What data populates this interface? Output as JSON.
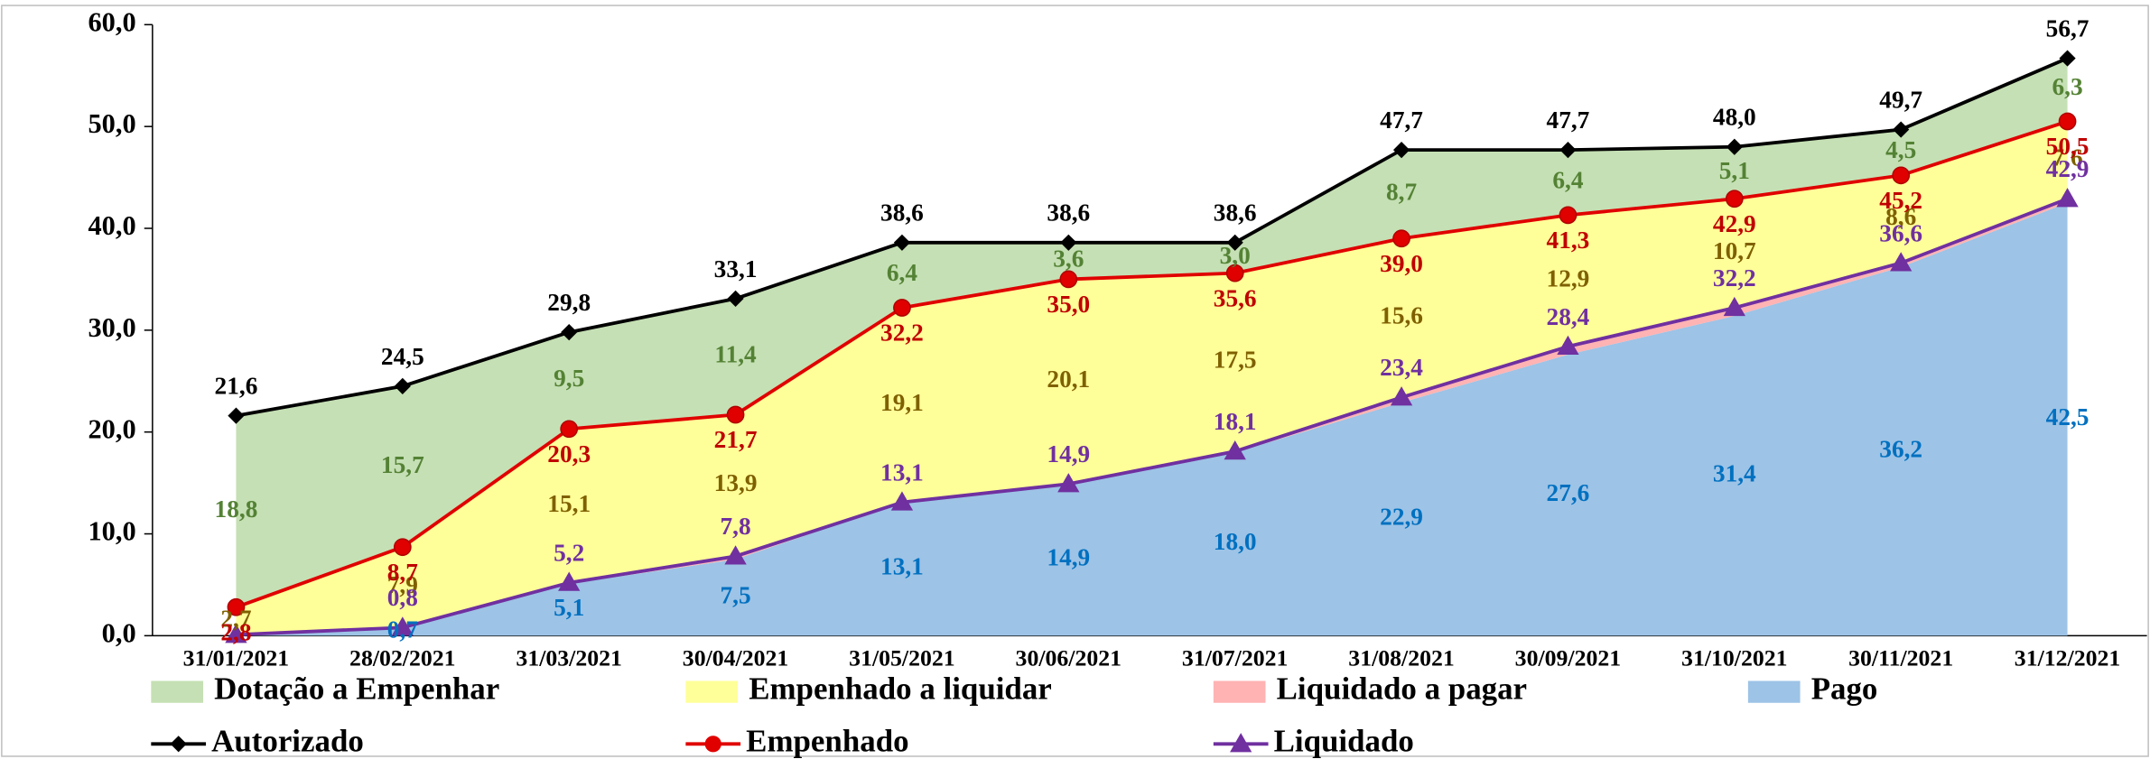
{
  "chart_data": {
    "type": "stacked-area-line",
    "categories": [
      "31/01/2021",
      "28/02/2021",
      "31/03/2021",
      "30/04/2021",
      "31/05/2021",
      "30/06/2021",
      "31/07/2021",
      "31/08/2021",
      "30/09/2021",
      "31/10/2021",
      "30/11/2021",
      "31/12/2021"
    ],
    "ylim": [
      0,
      60
    ],
    "yticks": [
      {
        "value": 0,
        "label": "0,0"
      },
      {
        "value": 10,
        "label": "10,0"
      },
      {
        "value": 20,
        "label": "20,0"
      },
      {
        "value": 30,
        "label": "30,0"
      },
      {
        "value": 40,
        "label": "40,0"
      },
      {
        "value": 50,
        "label": "50,0"
      },
      {
        "value": 60,
        "label": "60,0"
      }
    ],
    "series": [
      {
        "name": "Dotação a Empenhar",
        "type": "area",
        "color": "#c5e0b4",
        "label_color": "#548235",
        "values": [
          18.8,
          15.7,
          9.5,
          11.4,
          6.4,
          3.6,
          3.0,
          8.7,
          6.4,
          5.1,
          4.5,
          6.3
        ],
        "value_labels": [
          "18,8",
          "15,7",
          "9,5",
          "11,4",
          "6,4",
          "3,6",
          "3,0",
          "8,7",
          "6,4",
          "5,1",
          "4,5",
          "6,3"
        ]
      },
      {
        "name": "Empenhado a liquidar",
        "type": "area",
        "color": "#ffff99",
        "label_color": "#7f6000",
        "values": [
          2.7,
          7.9,
          15.1,
          13.9,
          19.1,
          20.1,
          17.5,
          15.6,
          12.9,
          10.7,
          8.6,
          7.6
        ],
        "value_labels": [
          "2,7",
          "7,9",
          "15,1",
          "13,9",
          "19,1",
          "20,1",
          "17,5",
          "15,6",
          "12,9",
          "10,7",
          "8,6",
          "7,6"
        ]
      },
      {
        "name": "Liquidado a pagar",
        "type": "area",
        "color": "#ffb3b3",
        "label_color": "#c00000",
        "values": [
          0,
          0.1,
          0.1,
          0.3,
          0,
          0,
          0.1,
          0.5,
          0.8,
          0.8,
          0.4,
          0.4
        ]
      },
      {
        "name": "Pago",
        "type": "area",
        "color": "#9dc3e6",
        "label_color": "#0070c0",
        "values": [
          0.1,
          0.7,
          5.1,
          7.5,
          13.1,
          14.9,
          18.0,
          22.9,
          27.6,
          31.4,
          36.2,
          42.5
        ],
        "value_labels": [
          null,
          "0,7",
          "5,1",
          "7,5",
          "13,1",
          "14,9",
          "18,0",
          "22,9",
          "27,6",
          "31,4",
          "36,2",
          "42,5"
        ]
      },
      {
        "name": "Autorizado",
        "type": "line",
        "color": "#000000",
        "marker": "diamond",
        "label_position": "above",
        "label_color": "#000000",
        "values": [
          21.6,
          24.5,
          29.8,
          33.1,
          38.6,
          38.6,
          38.6,
          47.7,
          47.7,
          48.0,
          49.7,
          56.7
        ],
        "value_labels": [
          "21,6",
          "24,5",
          "29,8",
          "33,1",
          "38,6",
          "38,6",
          "38,6",
          "47,7",
          "47,7",
          "48,0",
          "49,7",
          "56,7"
        ]
      },
      {
        "name": "Empenhado",
        "type": "line",
        "color": "#e00000",
        "marker": "circle",
        "label_position": "below",
        "label_color": "#c00000",
        "values": [
          2.8,
          8.7,
          20.3,
          21.7,
          32.2,
          35.0,
          35.6,
          39.0,
          41.3,
          42.9,
          45.2,
          50.5
        ],
        "value_labels": [
          "2,8",
          "8,7",
          "20,3",
          "21,7",
          "32,2",
          "35,0",
          "35,6",
          "39,0",
          "41,3",
          "42,9",
          "45,2",
          "50,5"
        ]
      },
      {
        "name": "Liquidado",
        "type": "line",
        "color": "#7030a0",
        "marker": "triangle",
        "label_position": "above",
        "label_color": "#7030a0",
        "values": [
          0.1,
          0.8,
          5.2,
          7.8,
          13.1,
          14.9,
          18.1,
          23.4,
          28.4,
          32.2,
          36.6,
          42.9
        ],
        "value_labels": [
          null,
          "0,8",
          "5,2",
          "7,8",
          "13,1",
          "14,9",
          "18,1",
          "23,4",
          "28,4",
          "32,2",
          "36,6",
          "42,9"
        ]
      }
    ]
  }
}
